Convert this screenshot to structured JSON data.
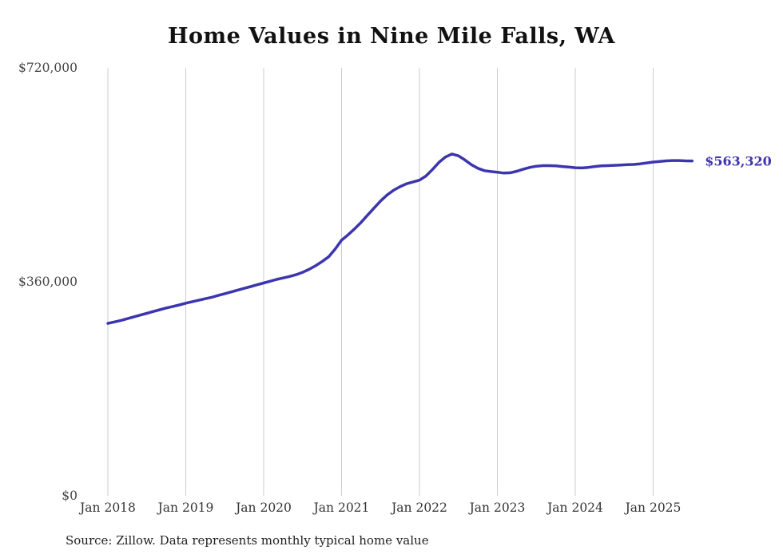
{
  "page": {
    "title": "Home Values in Nine Mile Falls, WA",
    "source": "Source: Zillow. Data represents monthly typical home value"
  },
  "colors": {
    "line": "#3d35ae",
    "grid": "#cccccc",
    "axis_text": "#444444",
    "tick_text": "#333333",
    "end_label": "#3d35ae"
  },
  "chart_data": {
    "type": "line",
    "title": "Home Values in Nine Mile Falls, WA",
    "ylabel": "",
    "xlabel": "",
    "ylim": [
      0,
      720000
    ],
    "grid": "vertical-only",
    "legend": "none",
    "end_label": "$563,320",
    "end_value": 563320,
    "y_ticks": [
      {
        "label": "$0",
        "value": 0
      },
      {
        "label": "$360,000",
        "value": 360000
      },
      {
        "label": "$720,000",
        "value": 720000
      }
    ],
    "x_tick_labels": [
      "Jan 2018",
      "Jan 2019",
      "Jan 2020",
      "Jan 2021",
      "Jan 2022",
      "Jan 2023",
      "Jan 2024",
      "Jan 2025"
    ],
    "series": [
      {
        "name": "Typical home value",
        "x": [
          "2018-01",
          "2018-02",
          "2018-03",
          "2018-04",
          "2018-05",
          "2018-06",
          "2018-07",
          "2018-08",
          "2018-09",
          "2018-10",
          "2018-11",
          "2018-12",
          "2019-01",
          "2019-02",
          "2019-03",
          "2019-04",
          "2019-05",
          "2019-06",
          "2019-07",
          "2019-08",
          "2019-09",
          "2019-10",
          "2019-11",
          "2019-12",
          "2020-01",
          "2020-02",
          "2020-03",
          "2020-04",
          "2020-05",
          "2020-06",
          "2020-07",
          "2020-08",
          "2020-09",
          "2020-10",
          "2020-11",
          "2020-12",
          "2021-01",
          "2021-02",
          "2021-03",
          "2021-04",
          "2021-05",
          "2021-06",
          "2021-07",
          "2021-08",
          "2021-09",
          "2021-10",
          "2021-11",
          "2021-12",
          "2022-01",
          "2022-02",
          "2022-03",
          "2022-04",
          "2022-05",
          "2022-06",
          "2022-07",
          "2022-08",
          "2022-09",
          "2022-10",
          "2022-11",
          "2022-12",
          "2023-01",
          "2023-02",
          "2023-03",
          "2023-04",
          "2023-05",
          "2023-06",
          "2023-07",
          "2023-08",
          "2023-09",
          "2023-10",
          "2023-11",
          "2023-12",
          "2024-01",
          "2024-02",
          "2024-03",
          "2024-04",
          "2024-05",
          "2024-06",
          "2024-07",
          "2024-08",
          "2024-09",
          "2024-10",
          "2024-11",
          "2024-12",
          "2025-01",
          "2025-02",
          "2025-03",
          "2025-04",
          "2025-05",
          "2025-06",
          "2025-07"
        ],
        "values": [
          290000,
          292500,
          295000,
          298000,
          301000,
          304000,
          307000,
          310000,
          313000,
          316000,
          318500,
          321000,
          324000,
          326500,
          329000,
          331500,
          334000,
          337000,
          340000,
          343000,
          346000,
          349000,
          352000,
          355000,
          358000,
          361000,
          364000,
          366500,
          369000,
          372000,
          376000,
          381000,
          387000,
          394000,
          402000,
          415000,
          430000,
          439000,
          449000,
          460000,
          472000,
          484000,
          496000,
          506000,
          514000,
          520000,
          525000,
          528000,
          531000,
          538000,
          549000,
          561000,
          570000,
          575000,
          572000,
          565000,
          557000,
          551000,
          547000,
          545500,
          544500,
          543000,
          543500,
          546000,
          549500,
          552500,
          554500,
          555500,
          555500,
          555000,
          554000,
          553000,
          552000,
          551500,
          552500,
          554000,
          555000,
          555500,
          556000,
          556500,
          557000,
          557500,
          558500,
          560000,
          561500,
          562500,
          563500,
          564000,
          564000,
          563500,
          563320
        ]
      }
    ]
  }
}
